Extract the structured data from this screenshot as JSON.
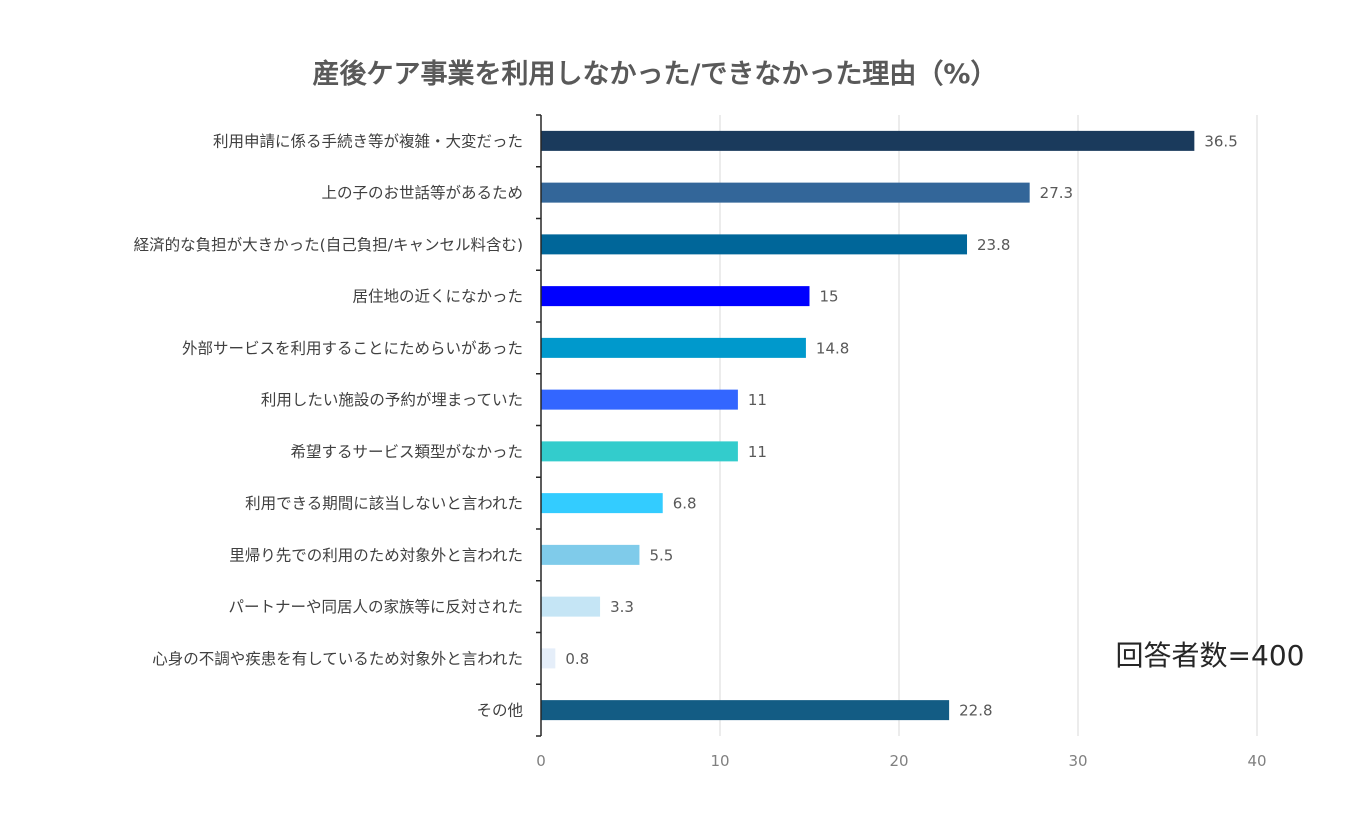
{
  "chart_data": {
    "type": "bar",
    "orientation": "horizontal",
    "title": "産後ケア事業を利用しなかった/できなかった理由（%）",
    "note": "回答者数=400",
    "categories": [
      "利用申請に係る手続き等が複雑・大変だった",
      "上の子のお世話等があるため",
      "経済的な負担が大きかった(自己負担/キャンセル料含む)",
      "居住地の近くになかった",
      "外部サービスを利用することにためらいがあった",
      "利用したい施設の予約が埋まっていた",
      "希望するサービス類型がなかった",
      "利用できる期間に該当しないと言われた",
      "里帰り先での利用のため対象外と言われた",
      "パートナーや同居人の家族等に反対された",
      "心身の不調や疾患を有しているため対象外と言われた",
      "その他"
    ],
    "values": [
      36.5,
      27.3,
      23.8,
      15,
      14.8,
      11,
      11,
      6.8,
      5.5,
      3.3,
      0.8,
      22.8
    ],
    "value_labels": [
      "36.5",
      "27.3",
      "23.8",
      "15",
      "14.8",
      "11",
      "11",
      "6.8",
      "5.5",
      "3.3",
      "0.8",
      "22.8"
    ],
    "colors": [
      "#1A3A5C",
      "#336699",
      "#006699",
      "#0000FF",
      "#0099CC",
      "#3366FF",
      "#33CCCC",
      "#33CCFF",
      "#7FCBEA",
      "#C5E5F5",
      "#E5EEF9",
      "#135C84"
    ],
    "xlim": [
      0,
      40
    ],
    "xticks": [
      0,
      10,
      20,
      30,
      40
    ],
    "xtick_labels": [
      "0",
      "10",
      "20",
      "30",
      "40"
    ],
    "grid": "vertical",
    "legend": "none"
  }
}
